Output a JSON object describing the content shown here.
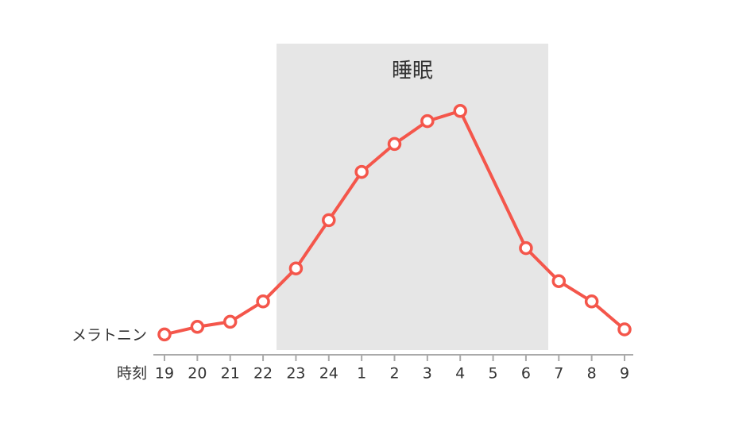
{
  "chart_data": {
    "type": "line",
    "band_label": "睡眠",
    "y_label": "メラトニン",
    "x_label": "時刻",
    "categories": [
      "19",
      "20",
      "21",
      "22",
      "23",
      "24",
      "1",
      "2",
      "3",
      "4",
      "5",
      "6",
      "7",
      "8",
      "9"
    ],
    "x": [
      "19",
      "20",
      "21",
      "22",
      "23",
      "24",
      "1",
      "2",
      "3",
      "4",
      "6",
      "7",
      "8",
      "9"
    ],
    "series": [
      {
        "name": "メラトニン",
        "color": "#f4564b",
        "values": [
          8,
          11,
          13,
          21,
          34,
          53,
          72,
          83,
          92,
          96,
          42,
          29,
          21,
          10
        ]
      }
    ],
    "ylim": [
      0,
      100
    ]
  }
}
